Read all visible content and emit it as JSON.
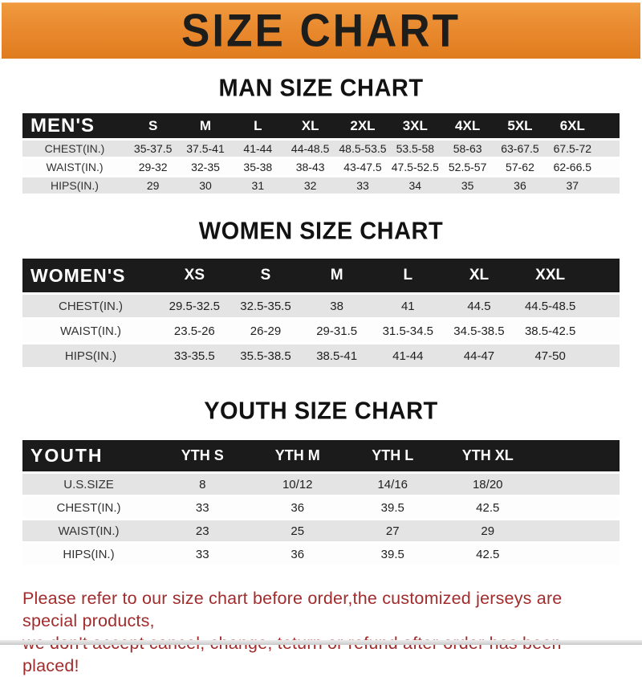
{
  "banner": {
    "title": "SIZE CHART",
    "bg_color": "#E8872C",
    "text_color": "#1D1D1B"
  },
  "theme": {
    "header_bar_color": "#1B1B1B",
    "row_gray": "#E4E4E4",
    "footer_red": "#A22C2C"
  },
  "sections": [
    {
      "id": "men",
      "heading": "MAN SIZE CHART",
      "header_label": "MEN'S",
      "columns": [
        "S",
        "M",
        "L",
        "XL",
        "2XL",
        "3XL",
        "4XL",
        "5XL",
        "6XL"
      ],
      "rows": [
        {
          "label": "CHEST(IN.)",
          "values": [
            "35-37.5",
            "37.5-41",
            "41-44",
            "44-48.5",
            "48.5-53.5",
            "53.5-58",
            "58-63",
            "63-67.5",
            "67.5-72"
          ]
        },
        {
          "label": "WAIST(IN.)",
          "values": [
            "29-32",
            "32-35",
            "35-38",
            "38-43",
            "43-47.5",
            "47.5-52.5",
            "52.5-57",
            "57-62",
            "62-66.5"
          ]
        },
        {
          "label": "HIPS(IN.)",
          "values": [
            "29",
            "30",
            "31",
            "32",
            "33",
            "34",
            "35",
            "36",
            "37"
          ]
        }
      ]
    },
    {
      "id": "women",
      "heading": "WOMEN SIZE CHART",
      "header_label": "WOMEN'S",
      "columns": [
        "XS",
        "S",
        "M",
        "L",
        "XL",
        "XXL"
      ],
      "rows": [
        {
          "label": "CHEST(IN.)",
          "values": [
            "29.5-32.5",
            "32.5-35.5",
            "38",
            "41",
            "44.5",
            "44.5-48.5"
          ]
        },
        {
          "label": "WAIST(IN.)",
          "values": [
            "23.5-26",
            "26-29",
            "29-31.5",
            "31.5-34.5",
            "34.5-38.5",
            "38.5-42.5"
          ]
        },
        {
          "label": "HIPS(IN.)",
          "values": [
            "33-35.5",
            "35.5-38.5",
            "38.5-41",
            "41-44",
            "44-47",
            "47-50"
          ]
        }
      ]
    },
    {
      "id": "youth",
      "heading": "YOUTH SIZE CHART",
      "header_label": "YOUTH",
      "columns": [
        "YTH S",
        "YTH M",
        "YTH L",
        "YTH XL"
      ],
      "rows": [
        {
          "label": "U.S.SIZE",
          "values": [
            "8",
            "10/12",
            "14/16",
            "18/20"
          ]
        },
        {
          "label": "CHEST(IN.)",
          "values": [
            "33",
            "36",
            "39.5",
            "42.5"
          ]
        },
        {
          "label": "WAIST(IN.)",
          "values": [
            "23",
            "25",
            "27",
            "29"
          ]
        },
        {
          "label": "HIPS(IN.)",
          "values": [
            "33",
            "36",
            "39.5",
            "42.5"
          ]
        }
      ]
    }
  ],
  "footer": {
    "line1": "Please refer to our size chart before order,the customized jerseys are special products,",
    "line2": "we don't accept cancel, change, teturn or refund after order has been placed!"
  }
}
